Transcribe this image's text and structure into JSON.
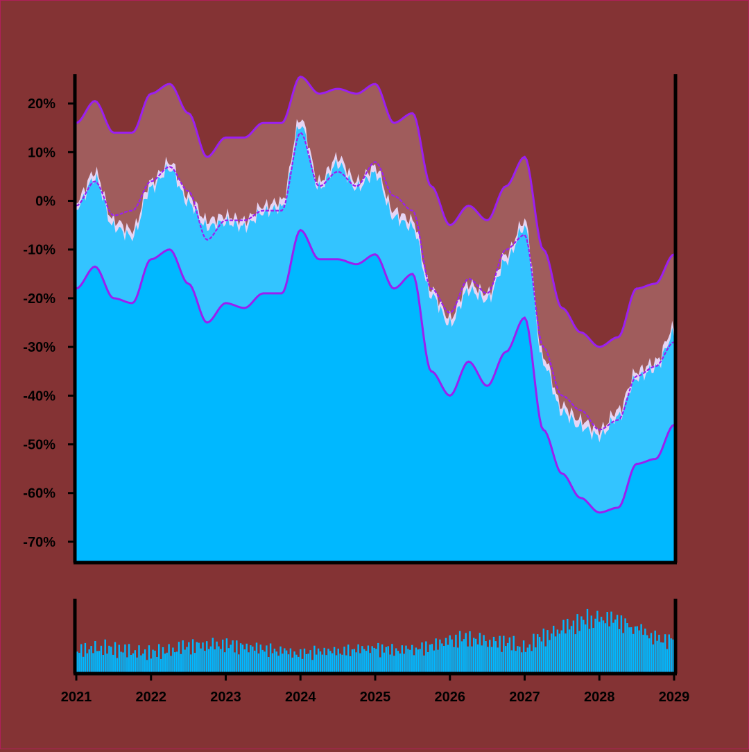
{
  "colors": {
    "background": "#843334",
    "band_outer": "#a05c5c",
    "band_inner": "#33c4ff",
    "price_area": "#00b8ff",
    "price_outline": "#e6d5f5",
    "line": "#9b1ff0",
    "volume": "#00b8ff",
    "axis": "#000000"
  },
  "chart_data": [
    {
      "type": "area",
      "title": "",
      "xlabel": "",
      "ylabel": "",
      "x_unit": "year",
      "xlim": [
        2021.0,
        2029.0
      ],
      "ylim": [
        -74,
        26
      ],
      "y_ticks": [
        20,
        10,
        0,
        -10,
        -20,
        -30,
        -40,
        -50,
        -60,
        -70
      ],
      "y_tick_labels": [
        "20%",
        "10%",
        "0%",
        "-10%",
        "-20%",
        "-30%",
        "-40%",
        "-50%",
        "-60%",
        "-70%"
      ],
      "x_ticks": [
        2021,
        2022,
        2023,
        2024,
        2025,
        2026,
        2027,
        2028,
        2029
      ],
      "x_tick_labels": [
        "2021",
        "2022",
        "2023",
        "2024",
        "2025",
        "2026",
        "2027",
        "2028",
        "2029"
      ],
      "grid": false,
      "legend": "none",
      "x": [
        2021.0,
        2021.25,
        2021.5,
        2021.75,
        2022.0,
        2022.25,
        2022.5,
        2022.75,
        2023.0,
        2023.25,
        2023.5,
        2023.75,
        2024.0,
        2024.25,
        2024.5,
        2024.75,
        2025.0,
        2025.25,
        2025.5,
        2025.75,
        2026.0,
        2026.25,
        2026.5,
        2026.75,
        2027.0,
        2027.25,
        2027.5,
        2027.75,
        2028.0,
        2028.25,
        2028.5,
        2028.75,
        2029.0
      ],
      "series": [
        {
          "values": [
            16,
            20.5,
            14,
            14,
            22,
            24,
            18,
            9,
            13,
            13,
            16,
            16,
            25.5,
            22,
            23,
            22,
            24,
            16,
            18,
            3,
            -5,
            -1,
            -4,
            3,
            9,
            -10,
            -22,
            -27,
            -30,
            -28,
            -18,
            -17,
            -11
          ]
        },
        {
          "values": [
            0,
            6,
            -4,
            -6,
            4,
            8,
            1,
            -4,
            -3,
            -4,
            -1,
            0,
            17,
            4,
            9,
            4,
            7,
            -2,
            -4,
            -18,
            -24,
            -17,
            -19,
            -11,
            -4,
            -32,
            -42,
            -45,
            -47,
            -43,
            -35,
            -33,
            -26
          ]
        },
        {
          "values": [
            -1,
            4,
            -3,
            -2,
            4,
            7,
            2,
            -8,
            -4,
            -4,
            -2,
            -2,
            14,
            3,
            6,
            3,
            8,
            1,
            -2,
            -18,
            -23,
            -16,
            -19,
            -10,
            -7,
            -30,
            -40,
            -43,
            -47,
            -45,
            -36,
            -34,
            -29
          ]
        },
        {
          "values": [
            -18,
            -13.5,
            -20,
            -21,
            -12,
            -10,
            -17,
            -25,
            -21,
            -22,
            -19,
            -19,
            -6,
            -12,
            -12,
            -13,
            -11,
            -18,
            -15,
            -35,
            -40,
            -33,
            -38,
            -31,
            -24,
            -47,
            -56,
            -61,
            -64,
            -63,
            -54,
            -53,
            -46
          ]
        }
      ]
    },
    {
      "type": "bar",
      "title": "",
      "xlim": [
        2021.0,
        2029.0
      ],
      "ylim": [
        0,
        100
      ],
      "x": [
        2021.0,
        2021.25,
        2021.5,
        2021.75,
        2022.0,
        2022.25,
        2022.5,
        2022.75,
        2023.0,
        2023.25,
        2023.5,
        2023.75,
        2024.0,
        2024.25,
        2024.5,
        2024.75,
        2025.0,
        2025.25,
        2025.5,
        2025.75,
        2026.0,
        2026.25,
        2026.5,
        2026.75,
        2027.0,
        2027.25,
        2027.5,
        2027.75,
        2028.0,
        2028.25,
        2028.5,
        2028.75,
        2029.0
      ],
      "values": [
        33,
        38,
        36,
        32,
        30,
        34,
        40,
        44,
        42,
        40,
        36,
        33,
        28,
        33,
        32,
        35,
        38,
        34,
        36,
        40,
        50,
        52,
        48,
        46,
        38,
        55,
        68,
        78,
        85,
        80,
        68,
        54,
        52
      ]
    }
  ]
}
